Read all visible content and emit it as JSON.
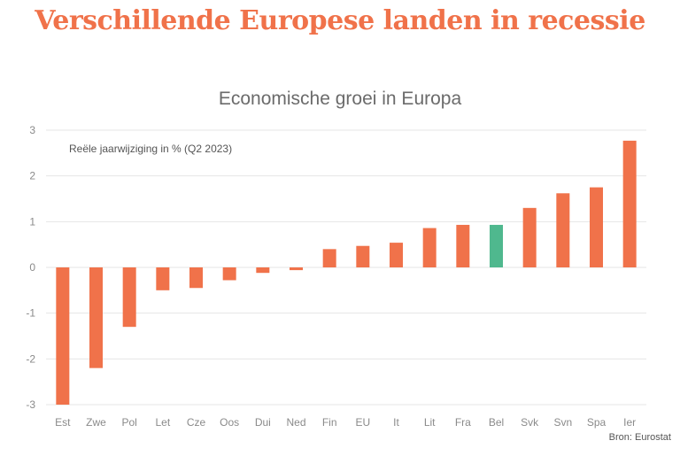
{
  "headline": "Verschillende Europese landen in recessie",
  "colors": {
    "accent": "#f0724a",
    "highlight": "#4fb88e",
    "grid": "#e6e6e6",
    "text": "#8a8a8a"
  },
  "source": "Bron: Eurostat",
  "chart_data": {
    "type": "bar",
    "title": "Economische groei in Europa",
    "annotation": "Reële jaarwijziging in % (Q2 2023)",
    "xlabel": "",
    "ylabel": "",
    "ylim": [
      -3,
      3
    ],
    "yticks": [
      "-3",
      "-2",
      "-1",
      "0",
      "1",
      "2",
      "3"
    ],
    "grid": true,
    "highlight_category": "Bel",
    "categories": [
      "Est",
      "Zwe",
      "Pol",
      "Let",
      "Cze",
      "Oos",
      "Dui",
      "Ned",
      "Fin",
      "EU",
      "It",
      "Lit",
      "Fra",
      "Bel",
      "Svk",
      "Svn",
      "Spa",
      "Ier"
    ],
    "values": [
      -3.0,
      -2.2,
      -1.3,
      -0.5,
      -0.45,
      -0.28,
      -0.12,
      -0.06,
      0.4,
      0.47,
      0.54,
      0.86,
      0.93,
      0.93,
      1.3,
      1.62,
      1.75,
      2.77
    ]
  }
}
